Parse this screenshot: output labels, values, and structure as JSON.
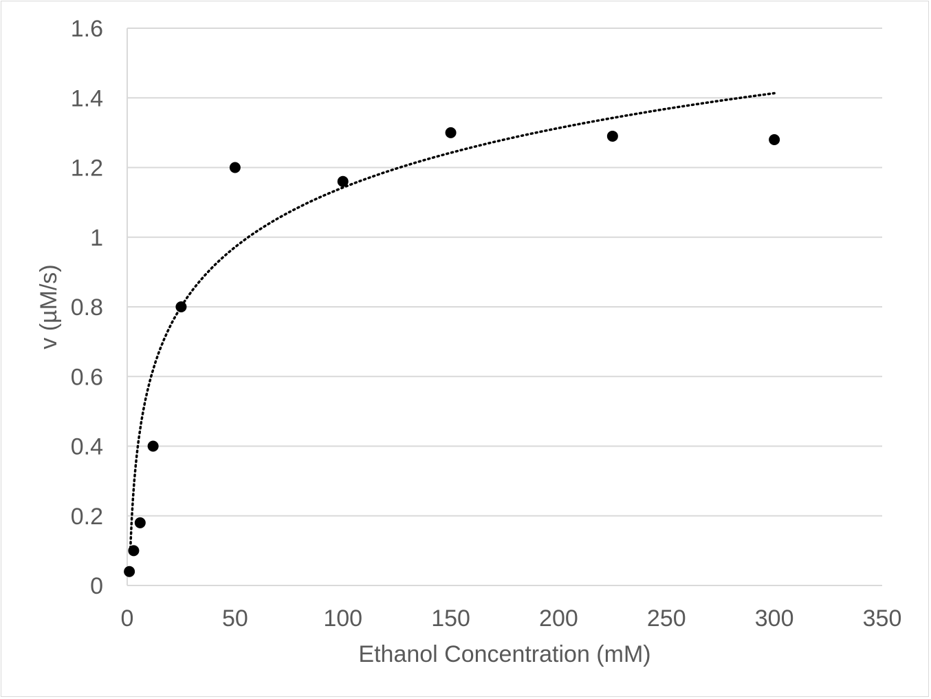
{
  "chart_data": {
    "type": "scatter",
    "xlabel": "Ethanol Concentration (mM)",
    "ylabel": "v (µM/s)",
    "xlim": [
      0,
      350
    ],
    "ylim": [
      0,
      1.6
    ],
    "x_ticks": [
      "0",
      "50",
      "100",
      "150",
      "200",
      "250",
      "300",
      "350"
    ],
    "y_ticks": [
      "0",
      "0.2",
      "0.4",
      "0.6",
      "0.8",
      "1",
      "1.2",
      "1.4",
      "1.6"
    ],
    "grid": "horizontal",
    "series": [
      {
        "x": [
          1,
          3,
          6,
          12,
          25,
          50,
          100,
          150,
          225,
          300
        ],
        "y": [
          0.04,
          0.1,
          0.18,
          0.4,
          0.8,
          1.2,
          1.16,
          1.3,
          1.29,
          1.28
        ]
      }
    ],
    "trendline": {
      "style": "dotted",
      "form": "logarithmic",
      "a": 0.2466,
      "b": 0.0068,
      "x_range": [
        1.5,
        300
      ]
    },
    "colors": {
      "points": "#000000",
      "grid": "#d9d9d9",
      "text": "#595959",
      "trendline": "#000000"
    }
  }
}
